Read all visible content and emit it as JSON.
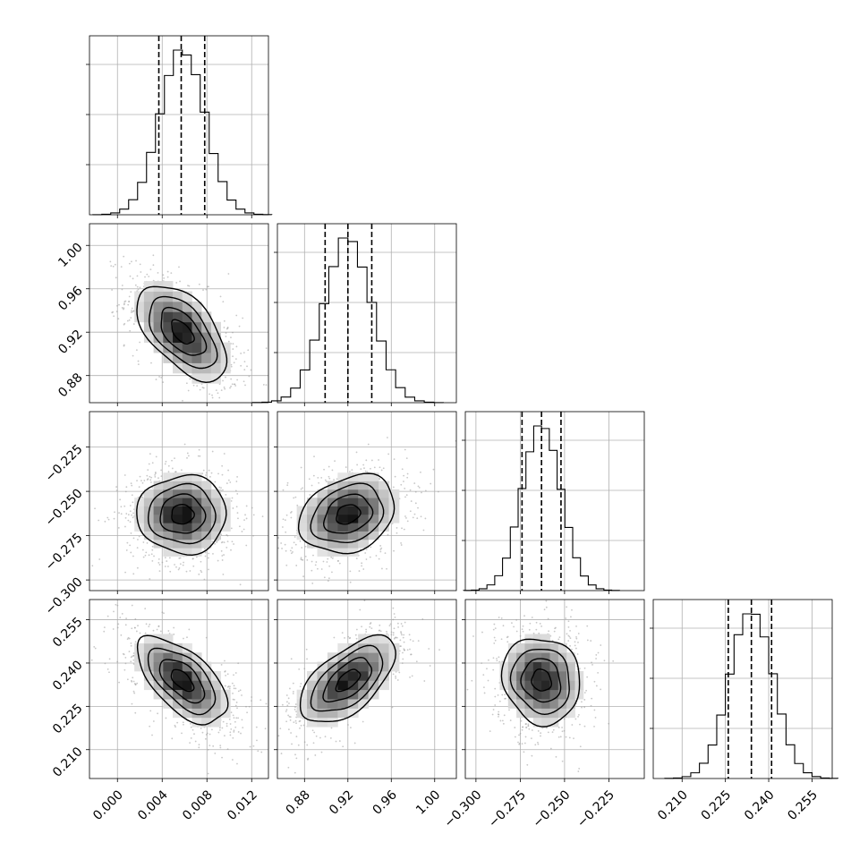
{
  "chart_data": {
    "type": "corner",
    "grid": true,
    "parameters": [
      {
        "range": [
          -0.0025,
          0.0135
        ],
        "mean": 0.0058,
        "sigma": 0.002,
        "quantiles": [
          0.0037,
          0.0057,
          0.0078
        ],
        "ticks": [
          0.0,
          0.004,
          0.008,
          0.012
        ],
        "tick_labels": [
          "0.000",
          "0.004",
          "0.008",
          "0.012"
        ]
      },
      {
        "range": [
          0.855,
          1.02
        ],
        "mean": 0.92,
        "sigma": 0.022,
        "quantiles": [
          0.899,
          0.92,
          0.942
        ],
        "ticks": [
          0.88,
          0.92,
          0.96,
          1.0
        ],
        "tick_labels": [
          "0.88",
          "0.92",
          "0.96",
          "1.00"
        ]
      },
      {
        "range": [
          -0.306,
          -0.205
        ],
        "mean": -0.263,
        "sigma": 0.011,
        "quantiles": [
          -0.274,
          -0.263,
          -0.252
        ],
        "ticks": [
          -0.3,
          -0.275,
          -0.25,
          -0.225
        ],
        "tick_labels": [
          "−0.300",
          "−0.275",
          "−0.250",
          "−0.225"
        ]
      },
      {
        "range": [
          0.2,
          0.262
        ],
        "mean": 0.234,
        "sigma": 0.0075,
        "quantiles": [
          0.226,
          0.234,
          0.241
        ],
        "ticks": [
          0.21,
          0.225,
          0.24,
          0.255
        ],
        "tick_labels": [
          "0.210",
          "0.225",
          "0.240",
          "0.255"
        ]
      }
    ],
    "correlations": {
      "1-0": -0.55,
      "2-0": 0.0,
      "2-1": 0.25,
      "3-0": -0.6,
      "3-1": 0.6,
      "3-2": -0.1
    },
    "histogram_bins": 20,
    "contour_levels_sigma": [
      0.5,
      1.0,
      1.5,
      2.0
    ],
    "scatter_points": 900
  }
}
